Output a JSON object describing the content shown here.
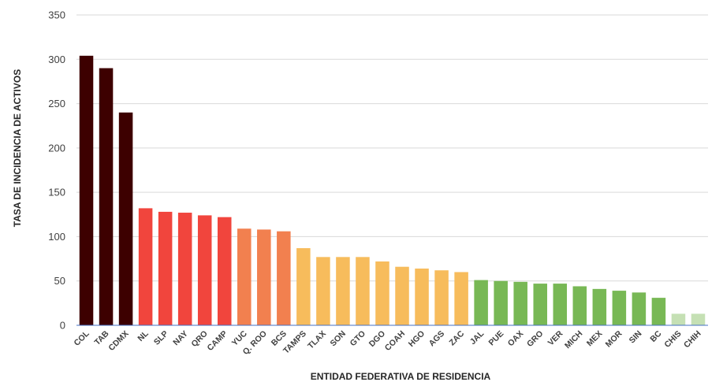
{
  "chart_data": {
    "type": "bar",
    "title": "",
    "xlabel": "ENTIDAD FEDERATIVA DE RESIDENCIA",
    "ylabel": "TASA DE INCIDENCIA DE ACTIVOS",
    "ylim": [
      0,
      350
    ],
    "yticks": [
      0,
      50,
      100,
      150,
      200,
      250,
      300,
      350
    ],
    "grid": true,
    "legend": "none",
    "categories": [
      "COL",
      "TAB",
      "CDMX",
      "NL",
      "SLP",
      "NAY",
      "QRO",
      "CAMP",
      "YUC",
      "Q. ROO",
      "BCS",
      "TAMPS",
      "TLAX",
      "SON",
      "GTO",
      "DGO",
      "COAH",
      "HGO",
      "AGS",
      "ZAC",
      "JAL",
      "PUE",
      "OAX",
      "GRO",
      "VER",
      "MICH",
      "MEX",
      "MOR",
      "SIN",
      "BC",
      "CHIS",
      "CHIH"
    ],
    "values": [
      304,
      290,
      240,
      132,
      128,
      127,
      124,
      122,
      109,
      108,
      106,
      87,
      77,
      77,
      77,
      72,
      66,
      64,
      62,
      60,
      51,
      50,
      49,
      47,
      47,
      44,
      41,
      39,
      37,
      31,
      13,
      13
    ],
    "bar_colors": [
      "#3d0000",
      "#3d0000",
      "#3d0000",
      "#f1453d",
      "#f1453d",
      "#f1453d",
      "#f1453d",
      "#f1453d",
      "#f2804f",
      "#f2804f",
      "#f2804f",
      "#f7bc5c",
      "#f7bc5c",
      "#f7bc5c",
      "#f7bc5c",
      "#f7bc5c",
      "#f7bc5c",
      "#f7bc5c",
      "#f7bc5c",
      "#f7bc5c",
      "#78b855",
      "#78b855",
      "#78b855",
      "#78b855",
      "#78b855",
      "#78b855",
      "#78b855",
      "#78b855",
      "#78b855",
      "#78b855",
      "#c5e0b4",
      "#c5e0b4"
    ]
  }
}
